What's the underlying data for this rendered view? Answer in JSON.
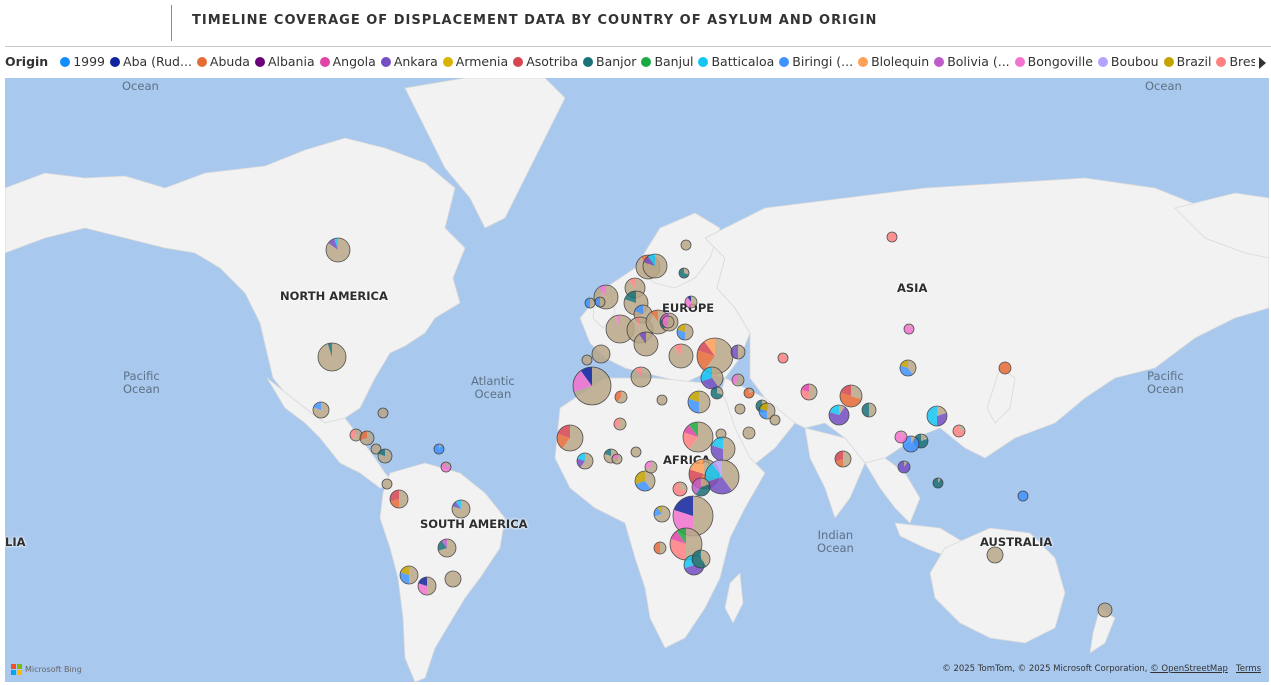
{
  "title": "TIMELINE COVERAGE OF DISPLACEMENT DATA BY COUNTRY OF ASYLUM AND ORIGIN",
  "legend": {
    "title": "Origin",
    "items": [
      {
        "label": "1999",
        "color": "#118DFF"
      },
      {
        "label": "Aba (Rud...",
        "color": "#12239E"
      },
      {
        "label": "Abuda",
        "color": "#E66C37"
      },
      {
        "label": "Albania",
        "color": "#6B007B"
      },
      {
        "label": "Angola",
        "color": "#E044A7"
      },
      {
        "label": "Ankara",
        "color": "#744EC2"
      },
      {
        "label": "Armenia",
        "color": "#D9B300"
      },
      {
        "label": "Asotriba",
        "color": "#D64550"
      },
      {
        "label": "Banjor",
        "color": "#197278"
      },
      {
        "label": "Banjul",
        "color": "#1AAB40"
      },
      {
        "label": "Batticaloa",
        "color": "#15C6F4"
      },
      {
        "label": "Biringi (...",
        "color": "#4092FF"
      },
      {
        "label": "Blolequin",
        "color": "#FFA058"
      },
      {
        "label": "Bolivia (...",
        "color": "#BE5DC9"
      },
      {
        "label": "Bongoville",
        "color": "#F472D0"
      },
      {
        "label": "Boubou",
        "color": "#B5A1FF"
      },
      {
        "label": "Brazil",
        "color": "#C4A200"
      },
      {
        "label": "Brest Regi...",
        "color": "#FF8080"
      }
    ]
  },
  "map": {
    "ocean_labels": [
      {
        "text": "Ocean"
      },
      {
        "text": "Ocean"
      },
      {
        "text": "Pacific\nOcean"
      },
      {
        "text": "Atlantic\nOcean"
      },
      {
        "text": "Pacific\nOcean"
      },
      {
        "text": "Indian\nOcean"
      }
    ],
    "continent_labels": [
      {
        "text": "NORTH AMERICA"
      },
      {
        "text": "EUROPE"
      },
      {
        "text": "ASIA"
      },
      {
        "text": "AFRICA"
      },
      {
        "text": "SOUTH AMERICA"
      },
      {
        "text": "AUSTRALIA"
      },
      {
        "text": "LIA"
      }
    ],
    "land_color": "#f2f2f2",
    "ocean_color": "#a9c8ee",
    "bubble_base_color": "#b9a789"
  },
  "footer": {
    "brand": "Microsoft Bing",
    "copyright": "© 2025 TomTom, © 2025 Microsoft Corporation, ",
    "osm_link": "© OpenStreetMap",
    "terms_link": "Terms"
  }
}
